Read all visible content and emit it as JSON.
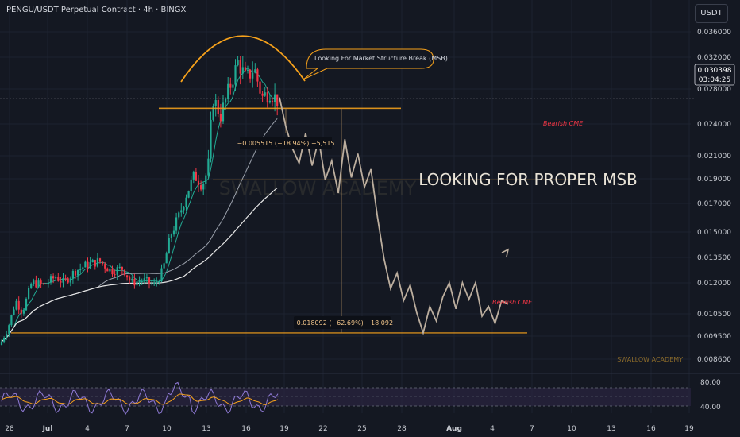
{
  "header": {
    "title": "PENGU/USDT Perpetual Contract · 4h · BINGX",
    "currency": "USDT"
  },
  "colors": {
    "bg": "#141822",
    "up": "#22ab94",
    "down": "#f23645",
    "accent": "#f7a21b",
    "projection": "#bcae9e",
    "rsi": "#8f7ad6"
  },
  "price_scale": {
    "ticks": [
      0.036,
      0.032,
      0.028,
      0.024,
      0.021,
      0.019,
      0.017,
      0.015,
      0.0135,
      0.012,
      0.0105,
      0.0095,
      0.0086
    ],
    "labels": [
      "0.036000",
      "0.032000",
      "0.028000",
      "0.024000",
      "0.021000",
      "0.019000",
      "0.017000",
      "0.015000",
      "0.013500",
      "0.012000",
      "0.010500",
      "0.009500",
      "0.008600"
    ],
    "current_price": "0.030398",
    "countdown": "03:04:25"
  },
  "time_scale": {
    "labels": [
      "28",
      "Jul",
      "4",
      "7",
      "10",
      "13",
      "16",
      "19",
      "22",
      "25",
      "28",
      "Aug",
      "4",
      "7",
      "10",
      "13",
      "16",
      "19"
    ]
  },
  "annotations": {
    "msb_note": "Looking For Market Structure Break (MSB)",
    "headline": "LOOKING FOR PROPER MSB",
    "watermark": "SWALLOW ACADEMY",
    "watermark_small": "SWALLOW ACADEMY",
    "cme_upper": "Bearish CME",
    "cme_lower": "Bearish CME",
    "measure_short": "−0.005515 (−18.94%) −5,515",
    "measure_long": "−0.018092 (−62.69%) −18,092"
  },
  "rsi_scale": {
    "labels": [
      "80.00",
      "40.00"
    ]
  },
  "chart_data": {
    "type": "candlestick",
    "title": "PENGU/USDT Perpetual Contract · 4h · BINGX",
    "price_range": [
      0.0082,
      0.0385
    ],
    "levels": {
      "bearish_cme_upper": 0.0236,
      "bearish_cme_lower": 0.0108,
      "neckline": 0.0296,
      "current": 0.030398
    },
    "projection_path": [
      0.0305,
      0.028,
      0.0262,
      0.025,
      0.0275,
      0.0248,
      0.027,
      0.0236,
      0.0252,
      0.0225,
      0.027,
      0.0238,
      0.0258,
      0.023,
      0.0245,
      0.0205,
      0.017,
      0.0145,
      0.0158,
      0.0135,
      0.0148,
      0.0125,
      0.0108,
      0.013,
      0.0118,
      0.0138,
      0.015,
      0.0128,
      0.015,
      0.0136,
      0.015,
      0.0122,
      0.013,
      0.0116,
      0.0135,
      0.0132
    ],
    "rsi_range": [
      30,
      90
    ]
  }
}
